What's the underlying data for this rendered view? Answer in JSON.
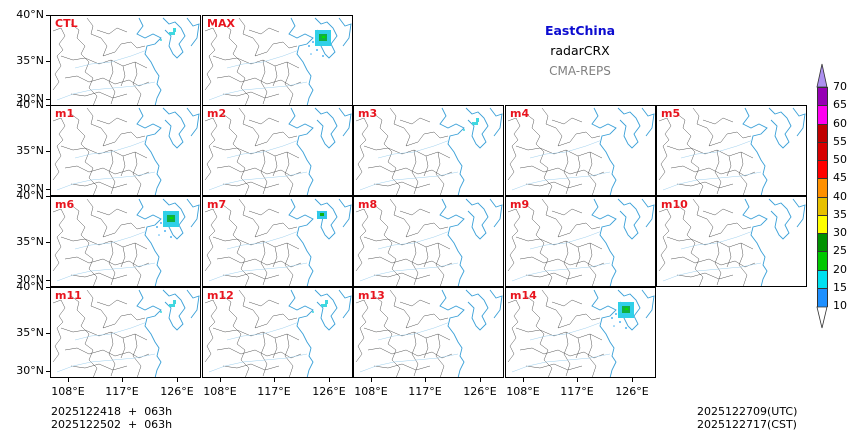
{
  "chart_data": {
    "type": "heatmap",
    "title": "EastChina",
    "subtitle": "radarCRX",
    "source": "CMA-REPS",
    "panels": [
      "CTL",
      "MAX",
      "m1",
      "m2",
      "m3",
      "m4",
      "m5",
      "m6",
      "m7",
      "m8",
      "m9",
      "m10",
      "m11",
      "m12",
      "m13",
      "m14"
    ],
    "ytick_labels": [
      "40°N",
      "35°N",
      "30°N"
    ],
    "xtick_labels": [
      "108°E",
      "117°E",
      "126°E"
    ],
    "colorbar": {
      "levels": [
        10,
        15,
        20,
        25,
        30,
        35,
        40,
        45,
        50,
        55,
        60,
        65,
        70
      ],
      "colors": [
        "#1e90ff",
        "#00e0f0",
        "#00c800",
        "#009100",
        "#ffff00",
        "#e7c000",
        "#ff9000",
        "#ff0000",
        "#d60000",
        "#c00000",
        "#ff00f0",
        "#9600b4",
        "#ad90f0"
      ],
      "extend": "both",
      "label_ticks": [
        "70",
        "65",
        "60",
        "55",
        "50",
        "45",
        "40",
        "35",
        "30",
        "25",
        "20",
        "15",
        "10"
      ]
    },
    "init_time": [
      "2025122418  +  063h",
      "2025122502  +  063h"
    ],
    "valid_time": [
      "2025122709(UTC)",
      "2025122717(CST)"
    ]
  },
  "header": {
    "region": "EastChina",
    "variable": "radarCRX",
    "model": "CMA-REPS"
  },
  "footer": {
    "left_line1": "2025122418  +  063h",
    "left_line2": "2025122502  +  063h",
    "right_line1": "2025122709(UTC)",
    "right_line2": "2025122717(CST)"
  },
  "axes": {
    "lat": [
      "40°N",
      "35°N",
      "30°N"
    ],
    "lon": [
      "108°E",
      "117°E",
      "126°E"
    ]
  },
  "panels": [
    {
      "label": "CTL",
      "echo": "light"
    },
    {
      "label": "MAX",
      "echo": "strong"
    },
    {
      "label": "m1",
      "echo": "none"
    },
    {
      "label": "m2",
      "echo": "none"
    },
    {
      "label": "m3",
      "echo": "light"
    },
    {
      "label": "m4",
      "echo": "none"
    },
    {
      "label": "m5",
      "echo": "none"
    },
    {
      "label": "m6",
      "echo": "strong"
    },
    {
      "label": "m7",
      "echo": "moderate"
    },
    {
      "label": "m8",
      "echo": "none"
    },
    {
      "label": "m9",
      "echo": "none"
    },
    {
      "label": "m10",
      "echo": "none"
    },
    {
      "label": "m11",
      "echo": "light"
    },
    {
      "label": "m12",
      "echo": "light"
    },
    {
      "label": "m13",
      "echo": "none"
    },
    {
      "label": "m14",
      "echo": "strong"
    }
  ],
  "colorbar_labels": [
    "70",
    "65",
    "60",
    "55",
    "50",
    "45",
    "40",
    "35",
    "30",
    "25",
    "20",
    "15",
    "10"
  ]
}
